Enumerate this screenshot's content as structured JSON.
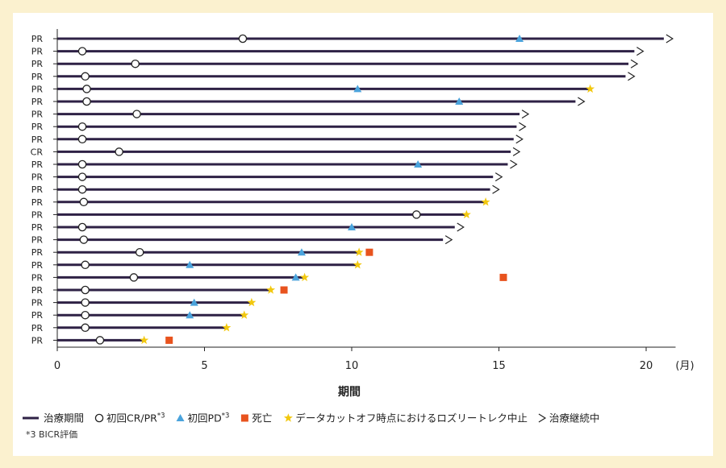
{
  "chart_data": {
    "type": "swimmer",
    "xlabel": "期間",
    "xunit": "(月)",
    "xlim": [
      0,
      21
    ],
    "xticks": [
      0,
      5,
      10,
      15,
      20
    ],
    "patients": [
      {
        "label": "PR",
        "duration": 20.6,
        "ongoing": true,
        "cr_pr": 6.3,
        "pd": [
          15.7
        ],
        "stop": [],
        "death": null
      },
      {
        "label": "PR",
        "duration": 19.6,
        "ongoing": true,
        "cr_pr": 0.85,
        "pd": [],
        "stop": [],
        "death": null
      },
      {
        "label": "PR",
        "duration": 19.4,
        "ongoing": true,
        "cr_pr": 2.65,
        "pd": [],
        "stop": [],
        "death": null
      },
      {
        "label": "PR",
        "duration": 19.3,
        "ongoing": true,
        "cr_pr": 0.95,
        "pd": [],
        "stop": [],
        "death": null
      },
      {
        "label": "PR",
        "duration": 18.1,
        "ongoing": false,
        "cr_pr": 1.0,
        "pd": [
          10.2
        ],
        "stop": [
          18.1
        ],
        "death": null
      },
      {
        "label": "PR",
        "duration": 17.6,
        "ongoing": true,
        "cr_pr": 1.0,
        "pd": [
          13.65
        ],
        "stop": [],
        "death": null
      },
      {
        "label": "PR",
        "duration": 15.7,
        "ongoing": true,
        "cr_pr": 2.7,
        "pd": [],
        "stop": [],
        "death": null
      },
      {
        "label": "PR",
        "duration": 15.6,
        "ongoing": true,
        "cr_pr": 0.85,
        "pd": [],
        "stop": [],
        "death": null
      },
      {
        "label": "PR",
        "duration": 15.5,
        "ongoing": true,
        "cr_pr": 0.85,
        "pd": [],
        "stop": [],
        "death": null
      },
      {
        "label": "CR",
        "duration": 15.4,
        "ongoing": true,
        "cr_pr": 2.1,
        "pd": [],
        "stop": [],
        "death": null
      },
      {
        "label": "PR",
        "duration": 15.3,
        "ongoing": true,
        "cr_pr": 0.85,
        "pd": [
          12.25
        ],
        "stop": [],
        "death": null
      },
      {
        "label": "PR",
        "duration": 14.8,
        "ongoing": true,
        "cr_pr": 0.85,
        "pd": [],
        "stop": [],
        "death": null
      },
      {
        "label": "PR",
        "duration": 14.7,
        "ongoing": true,
        "cr_pr": 0.85,
        "pd": [],
        "stop": [],
        "death": null
      },
      {
        "label": "PR",
        "duration": 14.55,
        "ongoing": false,
        "cr_pr": 0.9,
        "pd": [],
        "stop": [
          14.55
        ],
        "death": null
      },
      {
        "label": "PR",
        "duration": 13.9,
        "ongoing": false,
        "cr_pr": 12.2,
        "pd": [],
        "stop": [
          13.9
        ],
        "death": null
      },
      {
        "label": "PR",
        "duration": 13.5,
        "ongoing": true,
        "cr_pr": 0.85,
        "pd": [
          10.0
        ],
        "stop": [],
        "death": null
      },
      {
        "label": "PR",
        "duration": 13.1,
        "ongoing": true,
        "cr_pr": 0.9,
        "pd": [],
        "stop": [],
        "death": null
      },
      {
        "label": "PR",
        "duration": 10.25,
        "ongoing": false,
        "cr_pr": 2.8,
        "pd": [
          8.3
        ],
        "stop": [
          10.25
        ],
        "death": 10.6
      },
      {
        "label": "PR",
        "duration": 10.2,
        "ongoing": false,
        "cr_pr": 0.95,
        "pd": [
          4.5
        ],
        "stop": [
          10.2
        ],
        "death": null
      },
      {
        "label": "PR",
        "duration": 8.4,
        "ongoing": false,
        "cr_pr": 2.6,
        "pd": [
          8.1
        ],
        "stop": [
          8.4
        ],
        "death": 15.15
      },
      {
        "label": "PR",
        "duration": 7.25,
        "ongoing": false,
        "cr_pr": 0.95,
        "pd": [],
        "stop": [
          7.25
        ],
        "death": 7.7
      },
      {
        "label": "PR",
        "duration": 6.6,
        "ongoing": false,
        "cr_pr": 0.95,
        "pd": [
          4.65
        ],
        "stop": [
          6.6
        ],
        "death": null
      },
      {
        "label": "PR",
        "duration": 6.35,
        "ongoing": false,
        "cr_pr": 0.95,
        "pd": [
          4.5
        ],
        "stop": [
          6.35
        ],
        "death": null
      },
      {
        "label": "PR",
        "duration": 5.75,
        "ongoing": false,
        "cr_pr": 0.95,
        "pd": [],
        "stop": [
          5.75
        ],
        "death": null
      },
      {
        "label": "PR",
        "duration": 2.95,
        "ongoing": false,
        "cr_pr": 1.45,
        "pd": [],
        "stop": [
          2.95
        ],
        "death": 3.8
      }
    ],
    "legend": [
      {
        "symbol": "line",
        "label": "治療期間"
      },
      {
        "symbol": "circle",
        "label": "初回CR/PR",
        "sup": "*3"
      },
      {
        "symbol": "triangle",
        "label": "初回PD",
        "sup": "*3"
      },
      {
        "symbol": "square",
        "label": "死亡"
      },
      {
        "symbol": "star",
        "label": "データカットオフ時点におけるロズリートレク中止"
      },
      {
        "symbol": "chevron",
        "label": "治療継続中"
      }
    ],
    "colors": {
      "bar": "#2e2145",
      "pd": "#4aa3dc",
      "death": "#e8531e",
      "stop": "#f2c80f",
      "background": "#fbf1cf"
    }
  },
  "footnote": "*3 BICR評価"
}
